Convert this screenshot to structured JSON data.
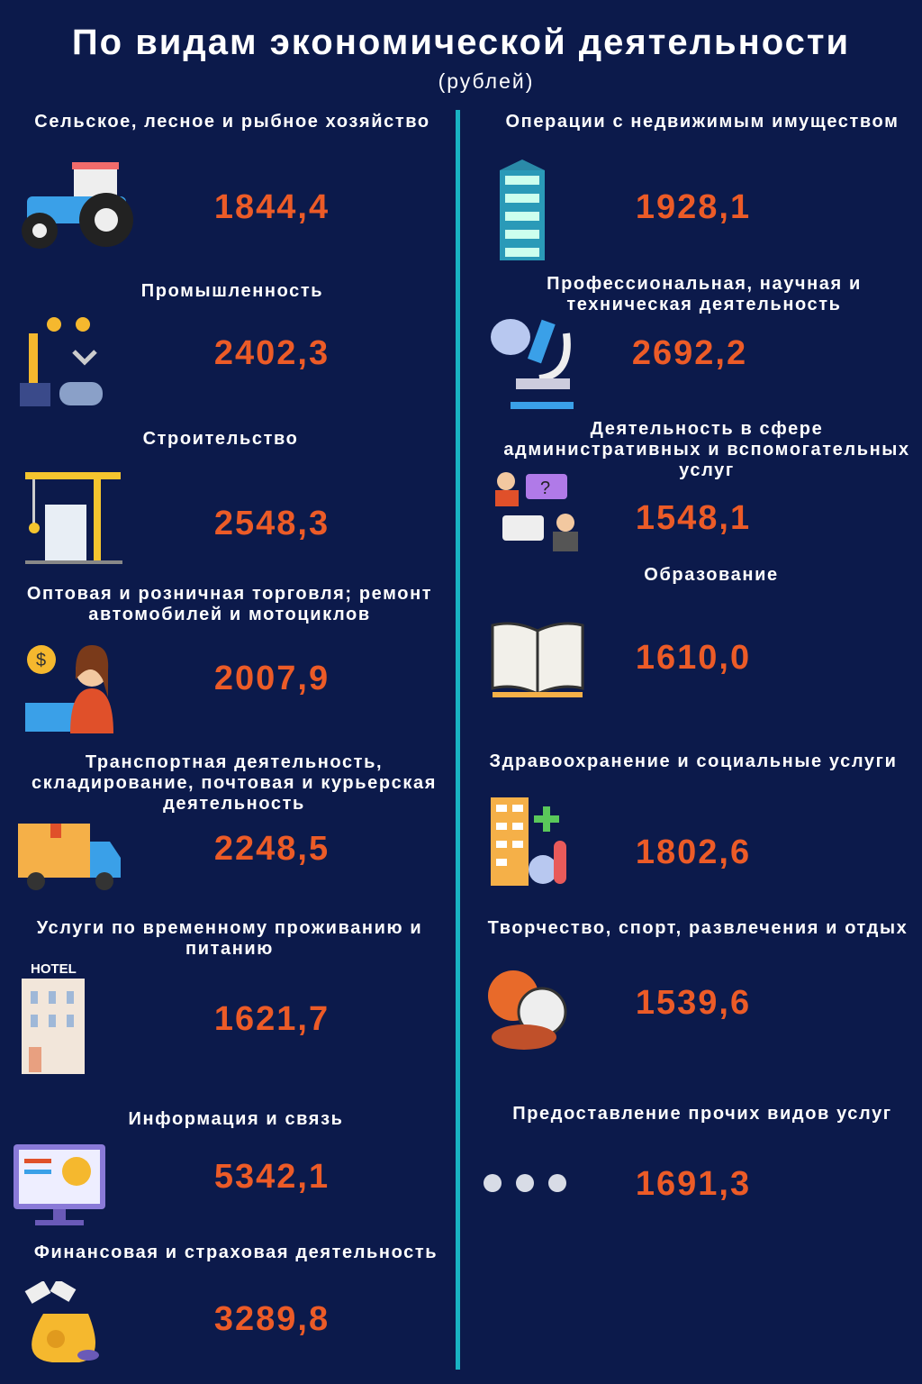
{
  "title": "По видам экономической деятельности",
  "subtitle": "(рублей)",
  "colors": {
    "background": "#0c1a4b",
    "value": "#ec5b27",
    "divider": "#19b3c3"
  },
  "left": [
    {
      "label": "Сельское, лесное и рыбное хозяйство",
      "value": "1844,4",
      "icon": "tractor-icon"
    },
    {
      "label": "Промышленность",
      "value": "2402,3",
      "icon": "robot-arm-icon"
    },
    {
      "label": "Строительство",
      "value": "2548,3",
      "icon": "crane-icon"
    },
    {
      "label": "Оптовая и розничная торговля; ремонт автомобилей и мотоциклов",
      "value": "2007,9",
      "icon": "cashier-icon"
    },
    {
      "label": "Транспортная деятельность, складирование, почтовая и курьерская деятельность",
      "value": "2248,5",
      "icon": "truck-icon"
    },
    {
      "label": "Услуги по временному проживанию и питанию",
      "value": "1621,7",
      "icon": "hotel-icon",
      "icon_text": "HOTEL"
    },
    {
      "label": "Информация и связь",
      "value": "5342,1",
      "icon": "monitor-icon"
    },
    {
      "label": "Финансовая и страховая деятельность",
      "value": "3289,8",
      "icon": "money-bag-icon"
    }
  ],
  "right": [
    {
      "label": "Операции с недвижимым имуществом",
      "value": "1928,1",
      "icon": "building-icon"
    },
    {
      "label": "Профессиональная, научная и техническая деятельность",
      "value": "2692,2",
      "icon": "microscope-icon"
    },
    {
      "label": "Деятельность в сфере административных и вспомогательных услуг",
      "value": "1548,1",
      "icon": "consulting-icon"
    },
    {
      "label": "Образование",
      "value": "1610,0",
      "icon": "book-icon"
    },
    {
      "label": "Здравоохранение и социальные услуги",
      "value": "1802,6",
      "icon": "hospital-icon"
    },
    {
      "label": "Творчество, спорт, развлечения и отдых",
      "value": "1539,6",
      "icon": "sports-balls-icon"
    },
    {
      "label": "Предоставление прочих видов услуг",
      "value": "1691,3",
      "icon": "dots-icon"
    }
  ]
}
